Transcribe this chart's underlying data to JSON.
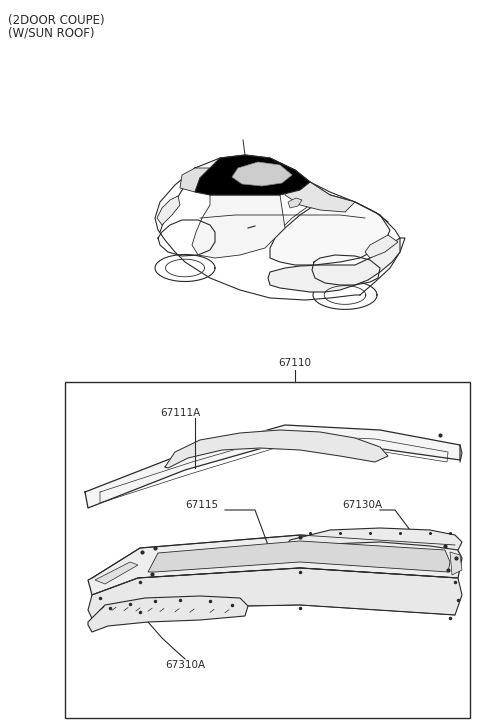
{
  "title_line1": "(2DOOR COUPE)",
  "title_line2": "(W/SUN ROOF)",
  "bg_color": "#ffffff",
  "line_color": "#2a2a2a",
  "label_color": "#2a2a2a",
  "font_size_title": 8.5,
  "font_size_label": 7.5,
  "label_67110": "67110",
  "label_67111A": "67111A",
  "label_67115": "67115",
  "label_67130A": "67130A",
  "label_67310A": "67310A"
}
